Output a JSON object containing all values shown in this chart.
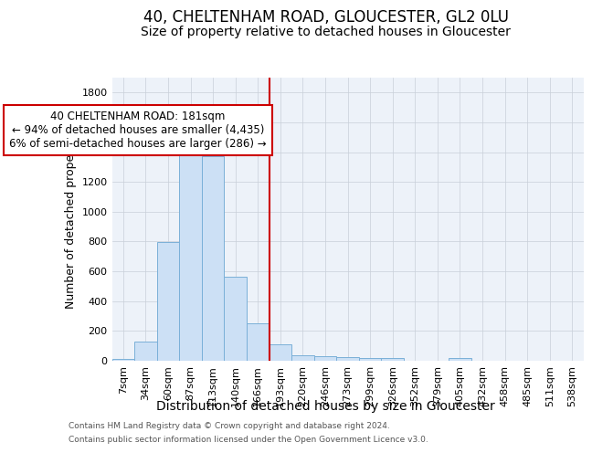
{
  "title": "40, CHELTENHAM ROAD, GLOUCESTER, GL2 0LU",
  "subtitle": "Size of property relative to detached houses in Gloucester",
  "xlabel_bottom": "Distribution of detached houses by size in Gloucester",
  "ylabel": "Number of detached properties",
  "bar_color": "#cce0f5",
  "bar_edgecolor": "#7ab0d8",
  "categories": [
    "7sqm",
    "34sqm",
    "60sqm",
    "87sqm",
    "113sqm",
    "140sqm",
    "166sqm",
    "193sqm",
    "220sqm",
    "246sqm",
    "273sqm",
    "299sqm",
    "326sqm",
    "352sqm",
    "379sqm",
    "405sqm",
    "432sqm",
    "458sqm",
    "485sqm",
    "511sqm",
    "538sqm"
  ],
  "values": [
    10,
    130,
    795,
    1465,
    1370,
    565,
    250,
    110,
    38,
    30,
    25,
    20,
    18,
    0,
    0,
    20,
    0,
    0,
    0,
    0,
    0
  ],
  "ylim": [
    0,
    1900
  ],
  "yticks": [
    0,
    200,
    400,
    600,
    800,
    1000,
    1200,
    1400,
    1600,
    1800
  ],
  "vline_x": 6.5,
  "vline_color": "#cc0000",
  "annotation_line1": "40 CHELTENHAM ROAD: 181sqm",
  "annotation_line2": "← 94% of detached houses are smaller (4,435)",
  "annotation_line3": "6% of semi-detached houses are larger (286) →",
  "annotation_box_color": "#ffffff",
  "annotation_box_edgecolor": "#cc0000",
  "footer1": "Contains HM Land Registry data © Crown copyright and database right 2024.",
  "footer2": "Contains public sector information licensed under the Open Government Licence v3.0.",
  "background_color": "#edf2f9",
  "grid_color": "#c8cfd8",
  "title_fontsize": 12,
  "subtitle_fontsize": 10,
  "ylabel_fontsize": 9,
  "xlabel_fontsize": 10,
  "tick_fontsize": 8,
  "annotation_fontsize": 8.5,
  "footer_fontsize": 6.5
}
